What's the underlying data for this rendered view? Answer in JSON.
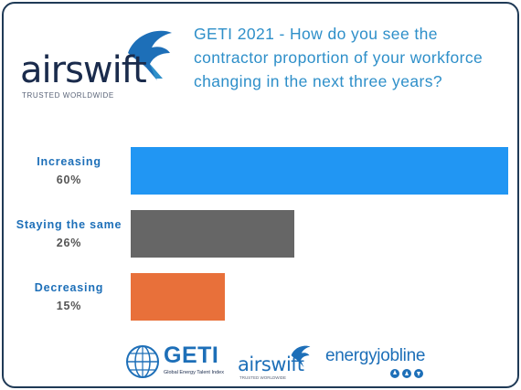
{
  "logo": {
    "name": "airswift",
    "tagline": "TRUSTED WORLDWIDE"
  },
  "question": "GETI 2021 - How do you see the contractor proportion of your workforce changing in the next three years?",
  "chart_data": {
    "type": "bar",
    "orientation": "horizontal",
    "categories": [
      "Increasing",
      "Staying the same",
      "Decreasing"
    ],
    "values": [
      60,
      26,
      15
    ],
    "value_labels": [
      "60%",
      "26%",
      "15%"
    ],
    "colors": [
      "#2196f3",
      "#666666",
      "#e8703a"
    ],
    "label_colors": [
      "#1d6fb8",
      "#1d6fb8",
      "#1d6fb8"
    ],
    "xlim": [
      0,
      60
    ]
  },
  "footer": {
    "geti_name": "GETI",
    "geti_sub": "Global Energy Talent Index",
    "airswift_name": "airswift",
    "airswift_sub": "TRUSTED WORLDWIDE",
    "ejl_name": "energyjobline"
  }
}
